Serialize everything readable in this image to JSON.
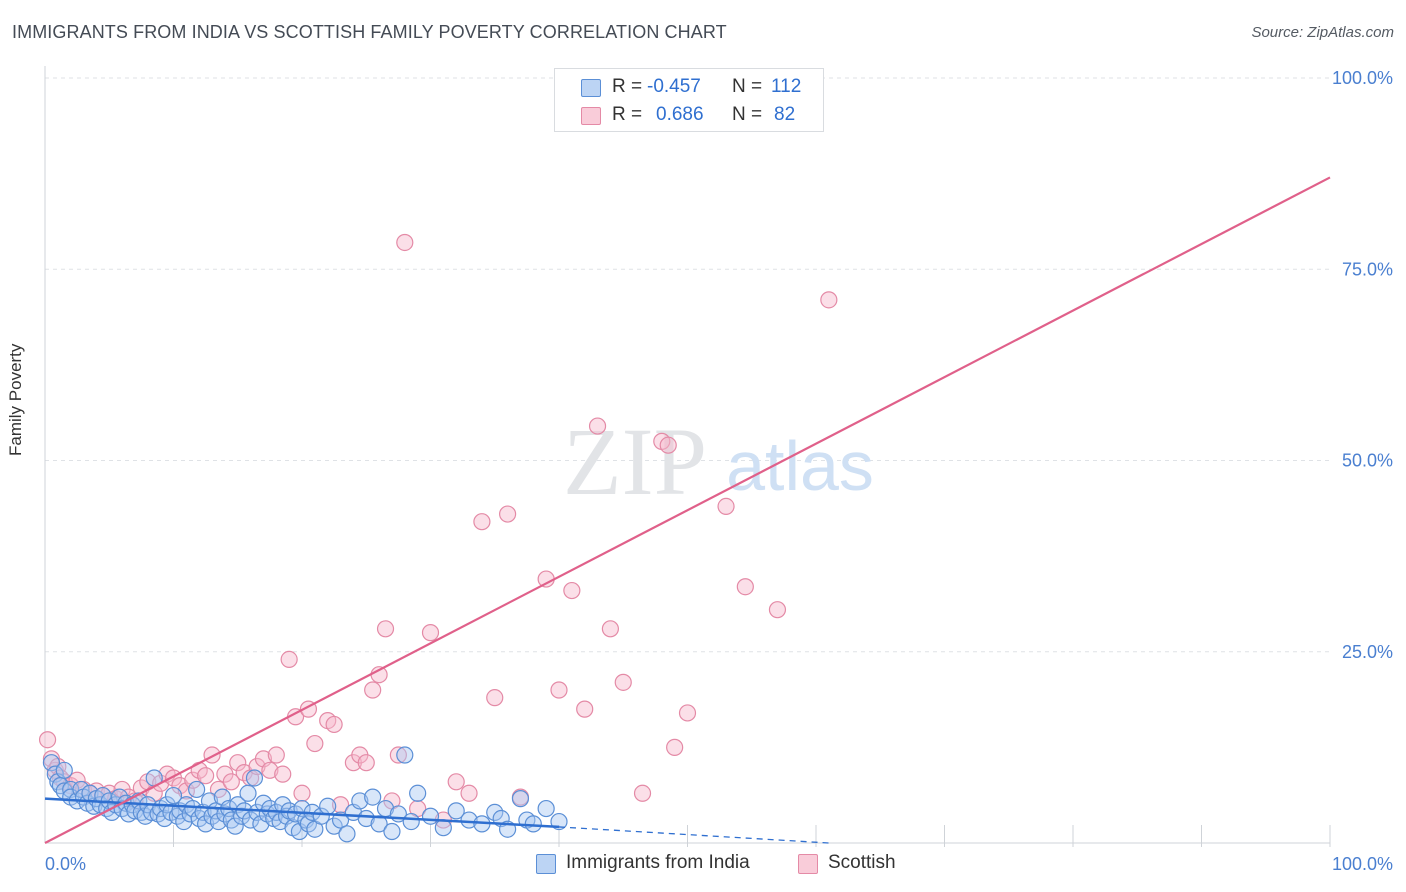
{
  "title": "IMMIGRANTS FROM INDIA VS SCOTTISH FAMILY POVERTY CORRELATION CHART",
  "source": "Source: ZipAtlas.com",
  "watermark": {
    "zip": "ZIP",
    "atlas": "atlas"
  },
  "stats": [
    {
      "r_label": "R =",
      "r_value": "-0.457",
      "n_label": "N =",
      "n_value": "112"
    },
    {
      "r_label": "R =",
      "r_value": "0.686",
      "n_label": "N =",
      "n_value": "82"
    }
  ],
  "colors": {
    "blue_fill": "#a9c8f2",
    "blue_stroke": "#5b8fd6",
    "blue_line": "#2f6fd0",
    "pink_fill": "#f6b8cc",
    "pink_stroke": "#e48aa6",
    "pink_line": "#e0608a",
    "axis_text": "#4a7fd0",
    "grid": "#dfe2e6"
  },
  "chart_data": {
    "type": "scatter",
    "title": "IMMIGRANTS FROM INDIA VS SCOTTISH FAMILY POVERTY CORRELATION CHART",
    "xlabel": "",
    "ylabel": "Family Poverty",
    "xlim": [
      0,
      100
    ],
    "ylim": [
      0,
      100
    ],
    "x_tick_labels": [
      "0.0%",
      "100.0%"
    ],
    "y_tick_labels": [
      {
        "value": 100,
        "label": "100.0%"
      },
      {
        "value": 75,
        "label": "75.0%"
      },
      {
        "value": 50,
        "label": "50.0%"
      },
      {
        "value": 25,
        "label": "25.0%"
      }
    ],
    "legend_position": "bottom",
    "series": [
      {
        "name": "Immigrants from India",
        "r": -0.457,
        "n": 112,
        "trend": {
          "x": [
            0,
            40
          ],
          "y": [
            5.8,
            2.1
          ],
          "dashed_to": [
            61,
            0.0
          ]
        },
        "points": [
          [
            0.5,
            10.5
          ],
          [
            0.8,
            9.0
          ],
          [
            1.0,
            8.0
          ],
          [
            1.2,
            7.5
          ],
          [
            1.5,
            9.5
          ],
          [
            1.5,
            6.8
          ],
          [
            2.0,
            7.0
          ],
          [
            2.0,
            6.0
          ],
          [
            2.5,
            5.5
          ],
          [
            2.8,
            7.0
          ],
          [
            3.0,
            6.0
          ],
          [
            3.3,
            5.2
          ],
          [
            3.5,
            6.5
          ],
          [
            3.8,
            4.8
          ],
          [
            4.0,
            5.8
          ],
          [
            4.3,
            5.0
          ],
          [
            4.5,
            6.2
          ],
          [
            4.8,
            4.5
          ],
          [
            5.0,
            5.5
          ],
          [
            5.2,
            4.0
          ],
          [
            5.5,
            5.0
          ],
          [
            5.8,
            6.0
          ],
          [
            6.0,
            4.5
          ],
          [
            6.3,
            5.2
          ],
          [
            6.5,
            3.8
          ],
          [
            6.8,
            5.0
          ],
          [
            7.0,
            4.2
          ],
          [
            7.3,
            5.5
          ],
          [
            7.5,
            4.0
          ],
          [
            7.8,
            3.5
          ],
          [
            8.0,
            5.0
          ],
          [
            8.3,
            4.0
          ],
          [
            8.5,
            8.5
          ],
          [
            8.8,
            3.8
          ],
          [
            9.0,
            4.5
          ],
          [
            9.3,
            3.2
          ],
          [
            9.5,
            5.0
          ],
          [
            9.8,
            4.0
          ],
          [
            10.0,
            6.2
          ],
          [
            10.3,
            3.5
          ],
          [
            10.5,
            4.2
          ],
          [
            10.8,
            2.8
          ],
          [
            11.0,
            5.0
          ],
          [
            11.3,
            3.8
          ],
          [
            11.5,
            4.5
          ],
          [
            11.8,
            7.0
          ],
          [
            12.0,
            3.2
          ],
          [
            12.3,
            4.0
          ],
          [
            12.5,
            2.5
          ],
          [
            12.8,
            5.5
          ],
          [
            13.0,
            3.5
          ],
          [
            13.3,
            4.2
          ],
          [
            13.5,
            2.8
          ],
          [
            13.8,
            6.0
          ],
          [
            14.0,
            3.8
          ],
          [
            14.3,
            4.5
          ],
          [
            14.5,
            3.0
          ],
          [
            14.8,
            2.2
          ],
          [
            15.0,
            5.0
          ],
          [
            15.3,
            3.5
          ],
          [
            15.5,
            4.2
          ],
          [
            15.8,
            6.5
          ],
          [
            16.0,
            3.0
          ],
          [
            16.3,
            8.5
          ],
          [
            16.5,
            4.0
          ],
          [
            16.8,
            2.5
          ],
          [
            17.0,
            5.2
          ],
          [
            17.3,
            3.8
          ],
          [
            17.5,
            4.5
          ],
          [
            17.8,
            3.2
          ],
          [
            18.0,
            4.0
          ],
          [
            18.3,
            2.8
          ],
          [
            18.5,
            5.0
          ],
          [
            18.8,
            3.5
          ],
          [
            19.0,
            4.2
          ],
          [
            19.3,
            2.0
          ],
          [
            19.5,
            3.8
          ],
          [
            19.8,
            1.5
          ],
          [
            20.0,
            4.5
          ],
          [
            20.3,
            3.0
          ],
          [
            20.5,
            2.5
          ],
          [
            20.8,
            4.0
          ],
          [
            21.0,
            1.8
          ],
          [
            21.5,
            3.5
          ],
          [
            22.0,
            4.8
          ],
          [
            22.5,
            2.2
          ],
          [
            23.0,
            3.0
          ],
          [
            23.5,
            1.2
          ],
          [
            24.0,
            4.0
          ],
          [
            24.5,
            5.5
          ],
          [
            25.0,
            3.2
          ],
          [
            25.5,
            6.0
          ],
          [
            26.0,
            2.5
          ],
          [
            26.5,
            4.5
          ],
          [
            27.0,
            1.5
          ],
          [
            27.5,
            3.8
          ],
          [
            28.0,
            11.5
          ],
          [
            28.5,
            2.8
          ],
          [
            29.0,
            6.5
          ],
          [
            30.0,
            3.5
          ],
          [
            31.0,
            2.0
          ],
          [
            32.0,
            4.2
          ],
          [
            33.0,
            3.0
          ],
          [
            34.0,
            2.5
          ],
          [
            35.0,
            4.0
          ],
          [
            35.5,
            3.2
          ],
          [
            36.0,
            1.8
          ],
          [
            37.0,
            5.8
          ],
          [
            37.5,
            3.0
          ],
          [
            38.0,
            2.5
          ],
          [
            39.0,
            4.5
          ],
          [
            40.0,
            2.8
          ]
        ]
      },
      {
        "name": "Scottish",
        "r": 0.686,
        "n": 82,
        "trend": {
          "x": [
            0,
            100
          ],
          "y": [
            0.0,
            87.0
          ]
        },
        "points": [
          [
            0.2,
            13.5
          ],
          [
            0.5,
            11.0
          ],
          [
            0.8,
            9.5
          ],
          [
            1.0,
            10.0
          ],
          [
            1.2,
            8.5
          ],
          [
            1.5,
            8.0
          ],
          [
            2.0,
            7.5
          ],
          [
            2.5,
            8.2
          ],
          [
            3.0,
            7.0
          ],
          [
            3.5,
            6.5
          ],
          [
            4.0,
            6.8
          ],
          [
            4.5,
            6.2
          ],
          [
            5.0,
            6.5
          ],
          [
            5.5,
            5.8
          ],
          [
            6.0,
            7.0
          ],
          [
            6.5,
            6.0
          ],
          [
            7.0,
            5.5
          ],
          [
            7.5,
            7.2
          ],
          [
            8.0,
            8.0
          ],
          [
            8.5,
            6.5
          ],
          [
            9.0,
            7.8
          ],
          [
            9.5,
            9.0
          ],
          [
            10.0,
            8.5
          ],
          [
            10.5,
            7.5
          ],
          [
            11.0,
            6.8
          ],
          [
            11.5,
            8.2
          ],
          [
            12.0,
            9.5
          ],
          [
            12.5,
            8.8
          ],
          [
            13.0,
            11.5
          ],
          [
            13.5,
            7.0
          ],
          [
            14.0,
            9.0
          ],
          [
            14.5,
            8.0
          ],
          [
            15.0,
            10.5
          ],
          [
            15.5,
            9.2
          ],
          [
            16.0,
            8.5
          ],
          [
            16.5,
            10.0
          ],
          [
            17.0,
            11.0
          ],
          [
            17.5,
            9.5
          ],
          [
            18.0,
            11.5
          ],
          [
            18.5,
            9.0
          ],
          [
            19.0,
            24.0
          ],
          [
            19.5,
            16.5
          ],
          [
            20.0,
            6.5
          ],
          [
            20.5,
            17.5
          ],
          [
            21.0,
            13.0
          ],
          [
            22.0,
            16.0
          ],
          [
            22.5,
            15.5
          ],
          [
            23.0,
            5.0
          ],
          [
            24.0,
            10.5
          ],
          [
            24.5,
            11.5
          ],
          [
            25.0,
            10.5
          ],
          [
            25.5,
            20.0
          ],
          [
            26.0,
            22.0
          ],
          [
            26.5,
            28.0
          ],
          [
            27.0,
            5.5
          ],
          [
            27.5,
            11.5
          ],
          [
            28.0,
            78.5
          ],
          [
            29.0,
            4.5
          ],
          [
            30.0,
            27.5
          ],
          [
            31.0,
            3.0
          ],
          [
            32.0,
            8.0
          ],
          [
            33.0,
            6.5
          ],
          [
            34.0,
            42.0
          ],
          [
            35.0,
            19.0
          ],
          [
            36.0,
            43.0
          ],
          [
            37.0,
            6.0
          ],
          [
            39.0,
            34.5
          ],
          [
            40.0,
            20.0
          ],
          [
            41.0,
            33.0
          ],
          [
            42.0,
            17.5
          ],
          [
            43.0,
            54.5
          ],
          [
            44.0,
            28.0
          ],
          [
            45.0,
            21.0
          ],
          [
            46.5,
            6.5
          ],
          [
            48.0,
            52.5
          ],
          [
            48.5,
            52.0
          ],
          [
            49.0,
            12.5
          ],
          [
            50.0,
            17.0
          ],
          [
            53.0,
            44.0
          ],
          [
            54.5,
            33.5
          ],
          [
            57.0,
            30.5
          ],
          [
            61.0,
            71.0
          ]
        ]
      }
    ]
  }
}
